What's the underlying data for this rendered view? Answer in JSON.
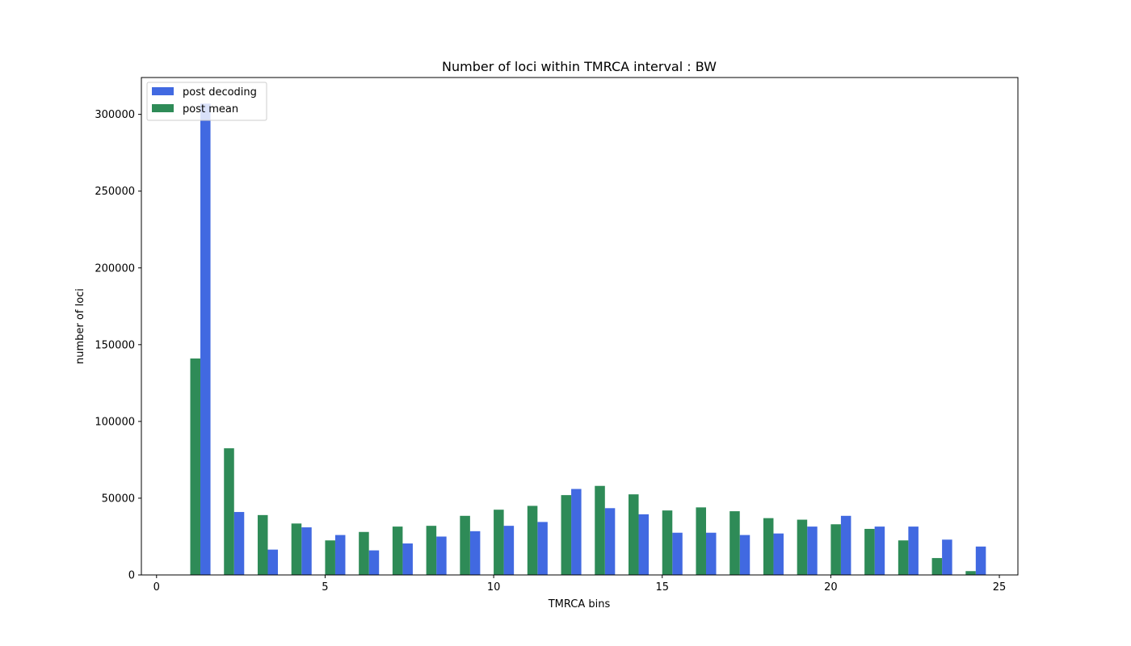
{
  "chart_data": {
    "type": "bar",
    "title": "Number of loci within TMRCA interval : BW",
    "xlabel": "TMRCA bins",
    "ylabel": "number of loci",
    "xlim": [
      -0.45,
      25.55
    ],
    "ylim": [
      0,
      324000
    ],
    "x_ticks": [
      0,
      5,
      10,
      15,
      20,
      25
    ],
    "y_ticks": [
      0,
      50000,
      100000,
      150000,
      200000,
      250000,
      300000
    ],
    "x_tick_labels": [
      "0",
      "5",
      "10",
      "15",
      "20",
      "25"
    ],
    "y_tick_labels": [
      "0",
      "50000",
      "100000",
      "150000",
      "200000",
      "250000",
      "300000"
    ],
    "grid": false,
    "legend_position": "top-left",
    "bar_width": 0.3,
    "categories": [
      1,
      2,
      3,
      4,
      5,
      6,
      7,
      8,
      9,
      10,
      11,
      12,
      13,
      14,
      15,
      16,
      17,
      18,
      19,
      20,
      21,
      22,
      23,
      24
    ],
    "series": [
      {
        "name": "post decoding",
        "color": "#4169E1",
        "offset": 0.3,
        "values": [
          307000,
          41000,
          16500,
          31000,
          26000,
          16000,
          20500,
          25000,
          28500,
          32000,
          34500,
          56000,
          43500,
          39500,
          27500,
          27500,
          26000,
          27000,
          31500,
          38500,
          31500,
          31500,
          23000,
          18500
        ]
      },
      {
        "name": "post mean",
        "color": "#2E8B57",
        "offset": 0,
        "values": [
          141000,
          82500,
          39000,
          33500,
          22500,
          28000,
          31500,
          32000,
          38500,
          42500,
          45000,
          52000,
          58000,
          52500,
          42000,
          44000,
          41500,
          37000,
          36000,
          33000,
          30000,
          22500,
          11000,
          2500
        ]
      }
    ]
  }
}
